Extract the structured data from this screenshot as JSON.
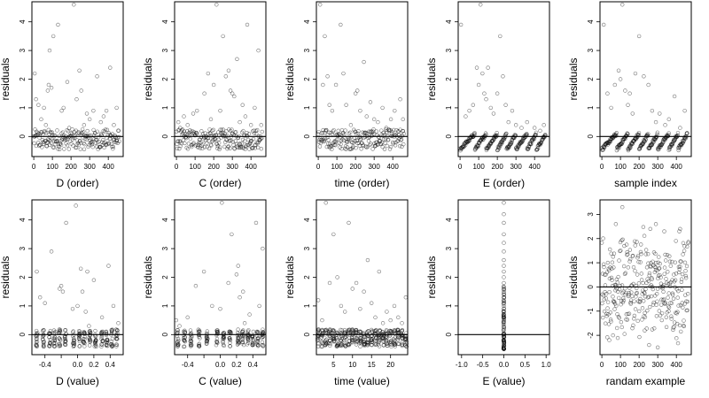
{
  "figure": {
    "ylabel": "residuals"
  },
  "chart_data": [
    {
      "id": "d-order",
      "type": "scatter",
      "xlabel": "D (order)",
      "ylabel": "residuals",
      "xlim": [
        -10,
        480
      ],
      "ylim": [
        -0.7,
        4.7
      ],
      "xticks": [
        0,
        100,
        200,
        300,
        400
      ],
      "xtick_labels": [
        "0",
        "100",
        "200",
        "300",
        "400"
      ],
      "yticks": [
        0,
        1,
        2,
        3,
        4
      ],
      "ytick_labels": [
        "0",
        "1",
        "2",
        "3",
        "4"
      ],
      "hline": 0,
      "pattern": "order",
      "points": [
        [
          5,
          2.2
        ],
        [
          12,
          1.3
        ],
        [
          25,
          1.1
        ],
        [
          40,
          0.6
        ],
        [
          55,
          1.0
        ],
        [
          65,
          0.4
        ],
        [
          75,
          1.6
        ],
        [
          80,
          1.8
        ],
        [
          85,
          3.0
        ],
        [
          95,
          1.7
        ],
        [
          105,
          3.5
        ],
        [
          130,
          3.9
        ],
        [
          150,
          0.9
        ],
        [
          160,
          1.0
        ],
        [
          180,
          1.9
        ],
        [
          190,
          0.3
        ],
        [
          215,
          4.6
        ],
        [
          230,
          1.3
        ],
        [
          245,
          2.3
        ],
        [
          255,
          1.6
        ],
        [
          270,
          0.4
        ],
        [
          285,
          0.8
        ],
        [
          300,
          0.6
        ],
        [
          320,
          0.9
        ],
        [
          340,
          2.1
        ],
        [
          360,
          0.5
        ],
        [
          375,
          0.7
        ],
        [
          390,
          0.9
        ],
        [
          410,
          2.4
        ],
        [
          430,
          0.4
        ],
        [
          445,
          1.0
        ]
      ]
    },
    {
      "id": "c-order",
      "type": "scatter",
      "xlabel": "C (order)",
      "ylabel": "residuals",
      "xlim": [
        -10,
        480
      ],
      "ylim": [
        -0.7,
        4.7
      ],
      "xticks": [
        0,
        100,
        200,
        300,
        400
      ],
      "xtick_labels": [
        "0",
        "100",
        "200",
        "300",
        "400"
      ],
      "yticks": [
        0,
        1,
        2,
        3,
        4
      ],
      "ytick_labels": [
        "0",
        "1",
        "2",
        "3",
        "4"
      ],
      "hline": 0,
      "pattern": "order",
      "points": [
        [
          10,
          0.5
        ],
        [
          20,
          0.3
        ],
        [
          40,
          0.7
        ],
        [
          60,
          0.4
        ],
        [
          90,
          0.8
        ],
        [
          110,
          0.9
        ],
        [
          150,
          1.5
        ],
        [
          170,
          2.2
        ],
        [
          185,
          0.6
        ],
        [
          200,
          1.8
        ],
        [
          215,
          4.6
        ],
        [
          235,
          0.9
        ],
        [
          250,
          3.5
        ],
        [
          265,
          2.1
        ],
        [
          280,
          2.3
        ],
        [
          290,
          1.6
        ],
        [
          300,
          1.5
        ],
        [
          310,
          1.4
        ],
        [
          325,
          2.7
        ],
        [
          340,
          0.5
        ],
        [
          355,
          1.1
        ],
        [
          370,
          0.7
        ],
        [
          380,
          3.9
        ],
        [
          400,
          0.4
        ],
        [
          420,
          1.0
        ],
        [
          440,
          3.0
        ],
        [
          455,
          0.4
        ]
      ]
    },
    {
      "id": "time-order",
      "type": "scatter",
      "xlabel": "time (order)",
      "ylabel": "residuals",
      "xlim": [
        -10,
        480
      ],
      "ylim": [
        -0.7,
        4.7
      ],
      "xticks": [
        0,
        100,
        200,
        300,
        400
      ],
      "xtick_labels": [
        "0",
        "100",
        "200",
        "300",
        "400"
      ],
      "yticks": [
        0,
        1,
        2,
        3,
        4
      ],
      "ytick_labels": [
        "0",
        "1",
        "2",
        "3",
        "4"
      ],
      "hline": 0,
      "pattern": "order",
      "points": [
        [
          10,
          4.6
        ],
        [
          25,
          1.8
        ],
        [
          35,
          3.5
        ],
        [
          50,
          2.1
        ],
        [
          60,
          1.1
        ],
        [
          75,
          0.9
        ],
        [
          95,
          1.8
        ],
        [
          120,
          3.9
        ],
        [
          135,
          2.2
        ],
        [
          150,
          1.1
        ],
        [
          175,
          0.4
        ],
        [
          200,
          1.5
        ],
        [
          210,
          1.6
        ],
        [
          225,
          0.9
        ],
        [
          245,
          2.6
        ],
        [
          260,
          0.7
        ],
        [
          280,
          1.2
        ],
        [
          300,
          0.6
        ],
        [
          320,
          0.5
        ],
        [
          345,
          1.0
        ],
        [
          365,
          0.3
        ],
        [
          390,
          0.6
        ],
        [
          410,
          0.9
        ],
        [
          440,
          1.3
        ],
        [
          455,
          0.6
        ]
      ]
    },
    {
      "id": "e-order",
      "type": "scatter",
      "xlabel": "E (order)",
      "ylabel": "residuals",
      "xlim": [
        -10,
        480
      ],
      "ylim": [
        -0.7,
        4.7
      ],
      "xticks": [
        0,
        100,
        200,
        300,
        400
      ],
      "xtick_labels": [
        "0",
        "100",
        "200",
        "300",
        "400"
      ],
      "yticks": [
        0,
        1,
        2,
        3,
        4
      ],
      "ytick_labels": [
        "0",
        "1",
        "2",
        "3",
        "4"
      ],
      "hline": 0,
      "pattern": "sawtooth",
      "points": [
        [
          5,
          3.9
        ],
        [
          30,
          0.7
        ],
        [
          50,
          0.9
        ],
        [
          70,
          1.1
        ],
        [
          90,
          2.4
        ],
        [
          100,
          1.8
        ],
        [
          110,
          4.6
        ],
        [
          120,
          2.2
        ],
        [
          130,
          1.5
        ],
        [
          140,
          1.3
        ],
        [
          150,
          2.4
        ],
        [
          165,
          1.0
        ],
        [
          180,
          0.8
        ],
        [
          200,
          1.5
        ],
        [
          215,
          3.5
        ],
        [
          230,
          2.1
        ],
        [
          245,
          1.1
        ],
        [
          260,
          0.5
        ],
        [
          280,
          0.9
        ],
        [
          300,
          0.4
        ],
        [
          330,
          0.3
        ],
        [
          360,
          0.5
        ],
        [
          400,
          0.3
        ],
        [
          430,
          0.2
        ],
        [
          450,
          0.4
        ]
      ]
    },
    {
      "id": "sample-index",
      "type": "scatter",
      "xlabel": "sample index",
      "ylabel": "residuals",
      "xlim": [
        -10,
        480
      ],
      "ylim": [
        -0.7,
        4.7
      ],
      "xticks": [
        0,
        100,
        200,
        300,
        400
      ],
      "xtick_labels": [
        "0",
        "100",
        "200",
        "300",
        "400"
      ],
      "yticks": [
        0,
        1,
        2,
        3,
        4
      ],
      "ytick_labels": [
        "0",
        "1",
        "2",
        "3",
        "4"
      ],
      "hline": 0,
      "pattern": "sawtooth",
      "points": [
        [
          10,
          3.9
        ],
        [
          30,
          1.5
        ],
        [
          50,
          1.0
        ],
        [
          70,
          1.8
        ],
        [
          90,
          2.3
        ],
        [
          100,
          2.0
        ],
        [
          110,
          4.6
        ],
        [
          125,
          1.6
        ],
        [
          140,
          1.1
        ],
        [
          150,
          1.5
        ],
        [
          165,
          0.8
        ],
        [
          180,
          2.2
        ],
        [
          200,
          3.5
        ],
        [
          225,
          2.1
        ],
        [
          250,
          1.8
        ],
        [
          270,
          0.9
        ],
        [
          290,
          0.5
        ],
        [
          310,
          0.8
        ],
        [
          340,
          0.4
        ],
        [
          360,
          0.6
        ],
        [
          390,
          1.4
        ],
        [
          420,
          0.3
        ],
        [
          445,
          0.9
        ]
      ]
    },
    {
      "id": "d-value",
      "type": "scatter",
      "xlabel": "D (value)",
      "ylabel": "residuals",
      "xlim": [
        -0.56,
        0.56
      ],
      "ylim": [
        -0.7,
        4.7
      ],
      "xticks": [
        -0.4,
        -0.2,
        0.0,
        0.2,
        0.4
      ],
      "xtick_labels": [
        "-0.4",
        "",
        "0.0",
        "0.2",
        "0.4"
      ],
      "yticks": [
        0,
        1,
        2,
        3,
        4
      ],
      "ytick_labels": [
        "0",
        "1",
        "2",
        "3",
        "4"
      ],
      "hline": 0,
      "pattern": "columns",
      "columns": [
        -0.5,
        -0.42,
        -0.34,
        -0.28,
        -0.22,
        -0.15,
        -0.05,
        0.02,
        0.08,
        0.15,
        0.22,
        0.3,
        0.36,
        0.42,
        0.48
      ],
      "points": [
        [
          -0.5,
          2.2
        ],
        [
          -0.46,
          1.3
        ],
        [
          -0.4,
          1.1
        ],
        [
          -0.32,
          2.9
        ],
        [
          -0.22,
          1.6
        ],
        [
          -0.2,
          1.7
        ],
        [
          -0.18,
          1.5
        ],
        [
          -0.14,
          3.9
        ],
        [
          -0.06,
          0.9
        ],
        [
          -0.02,
          4.5
        ],
        [
          0.0,
          1.0
        ],
        [
          0.04,
          2.3
        ],
        [
          0.06,
          1.5
        ],
        [
          0.1,
          0.8
        ],
        [
          0.12,
          2.2
        ],
        [
          0.14,
          0.3
        ],
        [
          0.2,
          1.9
        ],
        [
          0.3,
          0.6
        ],
        [
          0.38,
          2.4
        ],
        [
          0.44,
          1.0
        ],
        [
          0.5,
          0.4
        ]
      ]
    },
    {
      "id": "c-value",
      "type": "scatter",
      "xlabel": "C (value)",
      "ylabel": "residuals",
      "xlim": [
        -0.56,
        0.56
      ],
      "ylim": [
        -0.7,
        4.7
      ],
      "xticks": [
        -0.4,
        -0.2,
        0.0,
        0.2,
        0.4
      ],
      "xtick_labels": [
        "-0.4",
        "",
        "0.0",
        "0.2",
        "0.4"
      ],
      "yticks": [
        0,
        1,
        2,
        3,
        4
      ],
      "ytick_labels": [
        "0",
        "1",
        "2",
        "3",
        "4"
      ],
      "hline": 0,
      "pattern": "columns",
      "columns": [
        -0.52,
        -0.44,
        -0.36,
        -0.26,
        -0.16,
        -0.04,
        0.04,
        0.12,
        0.22,
        0.28,
        0.34,
        0.4,
        0.46,
        0.52
      ],
      "points": [
        [
          -0.54,
          0.5
        ],
        [
          -0.5,
          0.3
        ],
        [
          -0.4,
          0.6
        ],
        [
          -0.3,
          1.7
        ],
        [
          -0.2,
          2.2
        ],
        [
          -0.1,
          1.0
        ],
        [
          0.0,
          0.9
        ],
        [
          0.02,
          4.6
        ],
        [
          0.1,
          1.8
        ],
        [
          0.14,
          3.5
        ],
        [
          0.2,
          2.1
        ],
        [
          0.22,
          2.4
        ],
        [
          0.24,
          1.3
        ],
        [
          0.28,
          1.5
        ],
        [
          0.3,
          0.4
        ],
        [
          0.36,
          0.7
        ],
        [
          0.44,
          3.9
        ],
        [
          0.48,
          1.0
        ],
        [
          0.52,
          3.0
        ]
      ]
    },
    {
      "id": "time-value",
      "type": "scatter",
      "xlabel": "time (value)",
      "ylabel": "residuals",
      "xlim": [
        0.5,
        24.5
      ],
      "ylim": [
        -0.7,
        4.7
      ],
      "xticks": [
        5,
        10,
        15,
        20
      ],
      "xtick_labels": [
        "5",
        "10",
        "15",
        "20"
      ],
      "yticks": [
        0,
        1,
        2,
        3,
        4
      ],
      "ytick_labels": [
        "0",
        "1",
        "2",
        "3",
        "4"
      ],
      "hline": 0,
      "pattern": "columns",
      "columns": [
        1,
        2,
        3,
        4,
        5,
        6,
        7,
        8,
        9,
        10,
        11,
        12,
        13,
        14,
        15,
        16,
        17,
        18,
        19,
        20,
        21,
        22,
        23,
        24
      ],
      "points": [
        [
          1,
          1.2
        ],
        [
          2,
          0.5
        ],
        [
          3,
          4.6
        ],
        [
          4,
          1.8
        ],
        [
          5,
          3.5
        ],
        [
          6,
          2.0
        ],
        [
          7,
          1.0
        ],
        [
          8,
          0.8
        ],
        [
          9,
          3.9
        ],
        [
          10,
          1.6
        ],
        [
          11,
          1.8
        ],
        [
          12,
          0.9
        ],
        [
          13,
          1.5
        ],
        [
          14,
          2.6
        ],
        [
          15,
          1.1
        ],
        [
          16,
          0.6
        ],
        [
          17,
          2.2
        ],
        [
          18,
          0.4
        ],
        [
          19,
          0.8
        ],
        [
          20,
          0.5
        ],
        [
          21,
          1.0
        ],
        [
          22,
          0.6
        ],
        [
          23,
          0.4
        ],
        [
          24,
          1.3
        ]
      ]
    },
    {
      "id": "e-value",
      "type": "scatter",
      "xlabel": "E (value)",
      "ylabel": "residuals",
      "xlim": [
        -1.08,
        1.08
      ],
      "ylim": [
        -0.7,
        4.7
      ],
      "xticks": [
        -1.0,
        -0.5,
        0.0,
        0.5,
        1.0
      ],
      "xtick_labels": [
        "-1.0",
        "-0.5",
        "0.0",
        "0.5",
        "1.0"
      ],
      "yticks": [
        0,
        1,
        2,
        3,
        4
      ],
      "ytick_labels": [
        "0",
        "1",
        "2",
        "3",
        "4"
      ],
      "hline": 0,
      "pattern": "vertical",
      "points": [
        [
          0,
          4.6
        ],
        [
          0,
          4.2
        ],
        [
          0,
          3.9
        ],
        [
          0,
          3.5
        ],
        [
          0,
          3.2
        ],
        [
          0,
          2.9
        ],
        [
          0,
          2.6
        ],
        [
          0,
          2.4
        ],
        [
          0,
          2.2
        ],
        [
          0,
          2.0
        ],
        [
          0,
          1.8
        ],
        [
          0,
          1.6
        ],
        [
          0,
          1.5
        ],
        [
          0,
          1.4
        ],
        [
          0,
          1.3
        ],
        [
          0,
          1.2
        ],
        [
          0,
          1.1
        ],
        [
          0,
          1.0
        ],
        [
          0,
          0.9
        ],
        [
          0,
          0.8
        ],
        [
          0,
          0.7
        ],
        [
          0,
          0.6
        ],
        [
          0,
          0.5
        ],
        [
          0,
          0.4
        ],
        [
          0,
          0.3
        ],
        [
          0,
          0.2
        ]
      ]
    },
    {
      "id": "random-example",
      "type": "scatter",
      "xlabel": "randam example",
      "ylabel": "residuals",
      "xlim": [
        -10,
        480
      ],
      "ylim": [
        -2.8,
        3.6
      ],
      "xticks": [
        0,
        100,
        200,
        300,
        400
      ],
      "xtick_labels": [
        "0",
        "100",
        "200",
        "300",
        "400"
      ],
      "yticks": [
        -2,
        -1,
        0,
        1,
        2,
        3
      ],
      "ytick_labels": [
        "-2",
        "-1",
        "0",
        "1",
        "2",
        "3"
      ],
      "hline": 0,
      "pattern": "random",
      "points": [
        [
          110,
          3.3
        ],
        [
          75,
          2.6
        ],
        [
          260,
          2.4
        ],
        [
          290,
          2.6
        ],
        [
          335,
          2.3
        ],
        [
          420,
          2.4
        ],
        [
          40,
          -2.2
        ],
        [
          300,
          -2.5
        ],
        [
          60,
          -2.0
        ],
        [
          230,
          -1.8
        ]
      ]
    }
  ]
}
